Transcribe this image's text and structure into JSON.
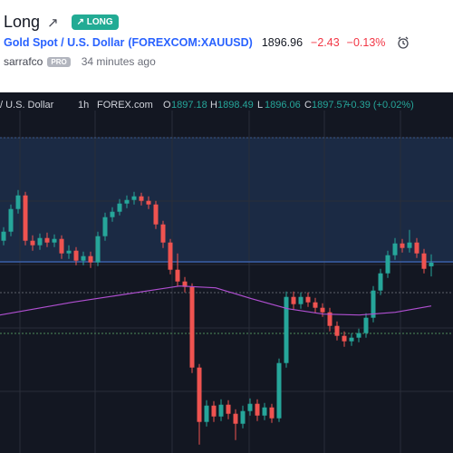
{
  "idea": {
    "title": "Long",
    "badge": "LONG",
    "symbol": "Gold Spot / U.S. Dollar",
    "ticker": "(FOREXCOM:XAUUSD)",
    "price": "1896.96",
    "change": "−2.43",
    "change_pct": "−0.13%",
    "author": "sarrafco",
    "author_badge": "PRO",
    "time": "34 minutes ago"
  },
  "chart_data": {
    "type": "candlestick",
    "legend": {
      "symbol": "/ U.S. Dollar",
      "interval": "1h",
      "source": "FOREX.com",
      "ohlc_labels": [
        "O",
        "H",
        "L",
        "C"
      ],
      "change": "+0.39 (+0.02%)"
    },
    "ylim": [
      1876.57,
      1915.77
    ],
    "up_color": "#26a69a",
    "down_color": "#ef5350",
    "candles": [
      [
        1900.0,
        1901.5,
        1899.5,
        1901.0
      ],
      [
        1901.0,
        1904.0,
        1900.5,
        1903.5
      ],
      [
        1903.5,
        1905.6,
        1903.0,
        1905.0
      ],
      [
        1905.0,
        1905.4,
        1899.5,
        1900.0
      ],
      [
        1900.0,
        1900.6,
        1898.9,
        1899.5
      ],
      [
        1899.5,
        1900.8,
        1899.0,
        1900.3
      ],
      [
        1900.3,
        1900.9,
        1899.3,
        1899.8
      ],
      [
        1899.8,
        1900.7,
        1899.3,
        1900.2
      ],
      [
        1900.2,
        1900.6,
        1898.0,
        1898.6
      ],
      [
        1898.6,
        1899.5,
        1898.0,
        1898.9
      ],
      [
        1898.9,
        1899.3,
        1897.3,
        1897.8
      ],
      [
        1897.8,
        1898.8,
        1897.3,
        1898.3
      ],
      [
        1898.3,
        1898.8,
        1897.0,
        1897.6
      ],
      [
        1897.6,
        1901.0,
        1897.2,
        1900.5
      ],
      [
        1900.5,
        1903.1,
        1900.0,
        1902.6
      ],
      [
        1902.6,
        1903.7,
        1902.1,
        1903.2
      ],
      [
        1903.2,
        1904.6,
        1902.8,
        1904.1
      ],
      [
        1904.1,
        1905.0,
        1903.6,
        1904.5
      ],
      [
        1904.5,
        1905.4,
        1904.0,
        1904.9
      ],
      [
        1904.9,
        1905.3,
        1903.9,
        1904.4
      ],
      [
        1904.4,
        1904.9,
        1903.5,
        1904.0
      ],
      [
        1904.0,
        1904.4,
        1901.3,
        1901.8
      ],
      [
        1901.8,
        1902.2,
        1899.2,
        1899.8
      ],
      [
        1899.8,
        1900.2,
        1896.3,
        1896.8
      ],
      [
        1896.8,
        1898.6,
        1895.0,
        1895.5
      ],
      [
        1895.5,
        1896.0,
        1894.3,
        1894.9
      ],
      [
        1894.9,
        1895.3,
        1885.4,
        1886.0
      ],
      [
        1886.0,
        1886.4,
        1877.5,
        1880.0
      ],
      [
        1880.0,
        1882.4,
        1879.5,
        1881.8
      ],
      [
        1881.8,
        1882.3,
        1880.0,
        1880.6
      ],
      [
        1880.6,
        1882.5,
        1880.1,
        1881.9
      ],
      [
        1881.9,
        1882.4,
        1880.3,
        1880.9
      ],
      [
        1880.9,
        1881.4,
        1878.0,
        1879.8
      ],
      [
        1879.8,
        1881.8,
        1879.3,
        1881.2
      ],
      [
        1881.2,
        1882.6,
        1880.7,
        1882.0
      ],
      [
        1882.0,
        1882.5,
        1880.1,
        1880.7
      ],
      [
        1880.7,
        1882.1,
        1880.2,
        1881.6
      ],
      [
        1881.6,
        1882.0,
        1879.9,
        1880.4
      ],
      [
        1880.4,
        1887.0,
        1880.0,
        1886.5
      ],
      [
        1886.5,
        1894.4,
        1886.0,
        1893.8
      ],
      [
        1893.8,
        1894.4,
        1892.4,
        1893.0
      ],
      [
        1893.0,
        1894.3,
        1892.5,
        1893.8
      ],
      [
        1893.8,
        1894.3,
        1892.7,
        1893.2
      ],
      [
        1893.2,
        1893.7,
        1892.0,
        1892.6
      ],
      [
        1892.6,
        1893.1,
        1891.6,
        1892.1
      ],
      [
        1892.1,
        1892.6,
        1890.0,
        1890.6
      ],
      [
        1890.6,
        1891.1,
        1889.0,
        1889.5
      ],
      [
        1889.5,
        1890.0,
        1888.3,
        1888.9
      ],
      [
        1888.9,
        1889.8,
        1888.4,
        1889.3
      ],
      [
        1889.3,
        1890.3,
        1888.8,
        1889.8
      ],
      [
        1889.8,
        1892.0,
        1889.3,
        1891.5
      ],
      [
        1891.5,
        1895.0,
        1891.0,
        1894.5
      ],
      [
        1894.5,
        1896.9,
        1894.0,
        1896.4
      ],
      [
        1896.4,
        1898.9,
        1895.9,
        1898.4
      ],
      [
        1898.4,
        1900.3,
        1897.9,
        1899.7
      ],
      [
        1899.7,
        1900.2,
        1898.7,
        1899.2
      ],
      [
        1899.2,
        1901.2,
        1898.7,
        1899.8
      ],
      [
        1899.8,
        1900.3,
        1898.1,
        1898.6
      ],
      [
        1898.6,
        1899.1,
        1896.4,
        1896.9
      ],
      [
        1897.18,
        1898.49,
        1896.06,
        1897.57
      ]
    ],
    "ma": {
      "color": "#b04fd1",
      "values": [
        1891.8,
        1892.5,
        1893.2,
        1893.8,
        1894.4,
        1895.0,
        1894.8,
        1893.6,
        1892.5,
        1891.9,
        1891.8,
        1892.1,
        1892.8
      ]
    }
  }
}
